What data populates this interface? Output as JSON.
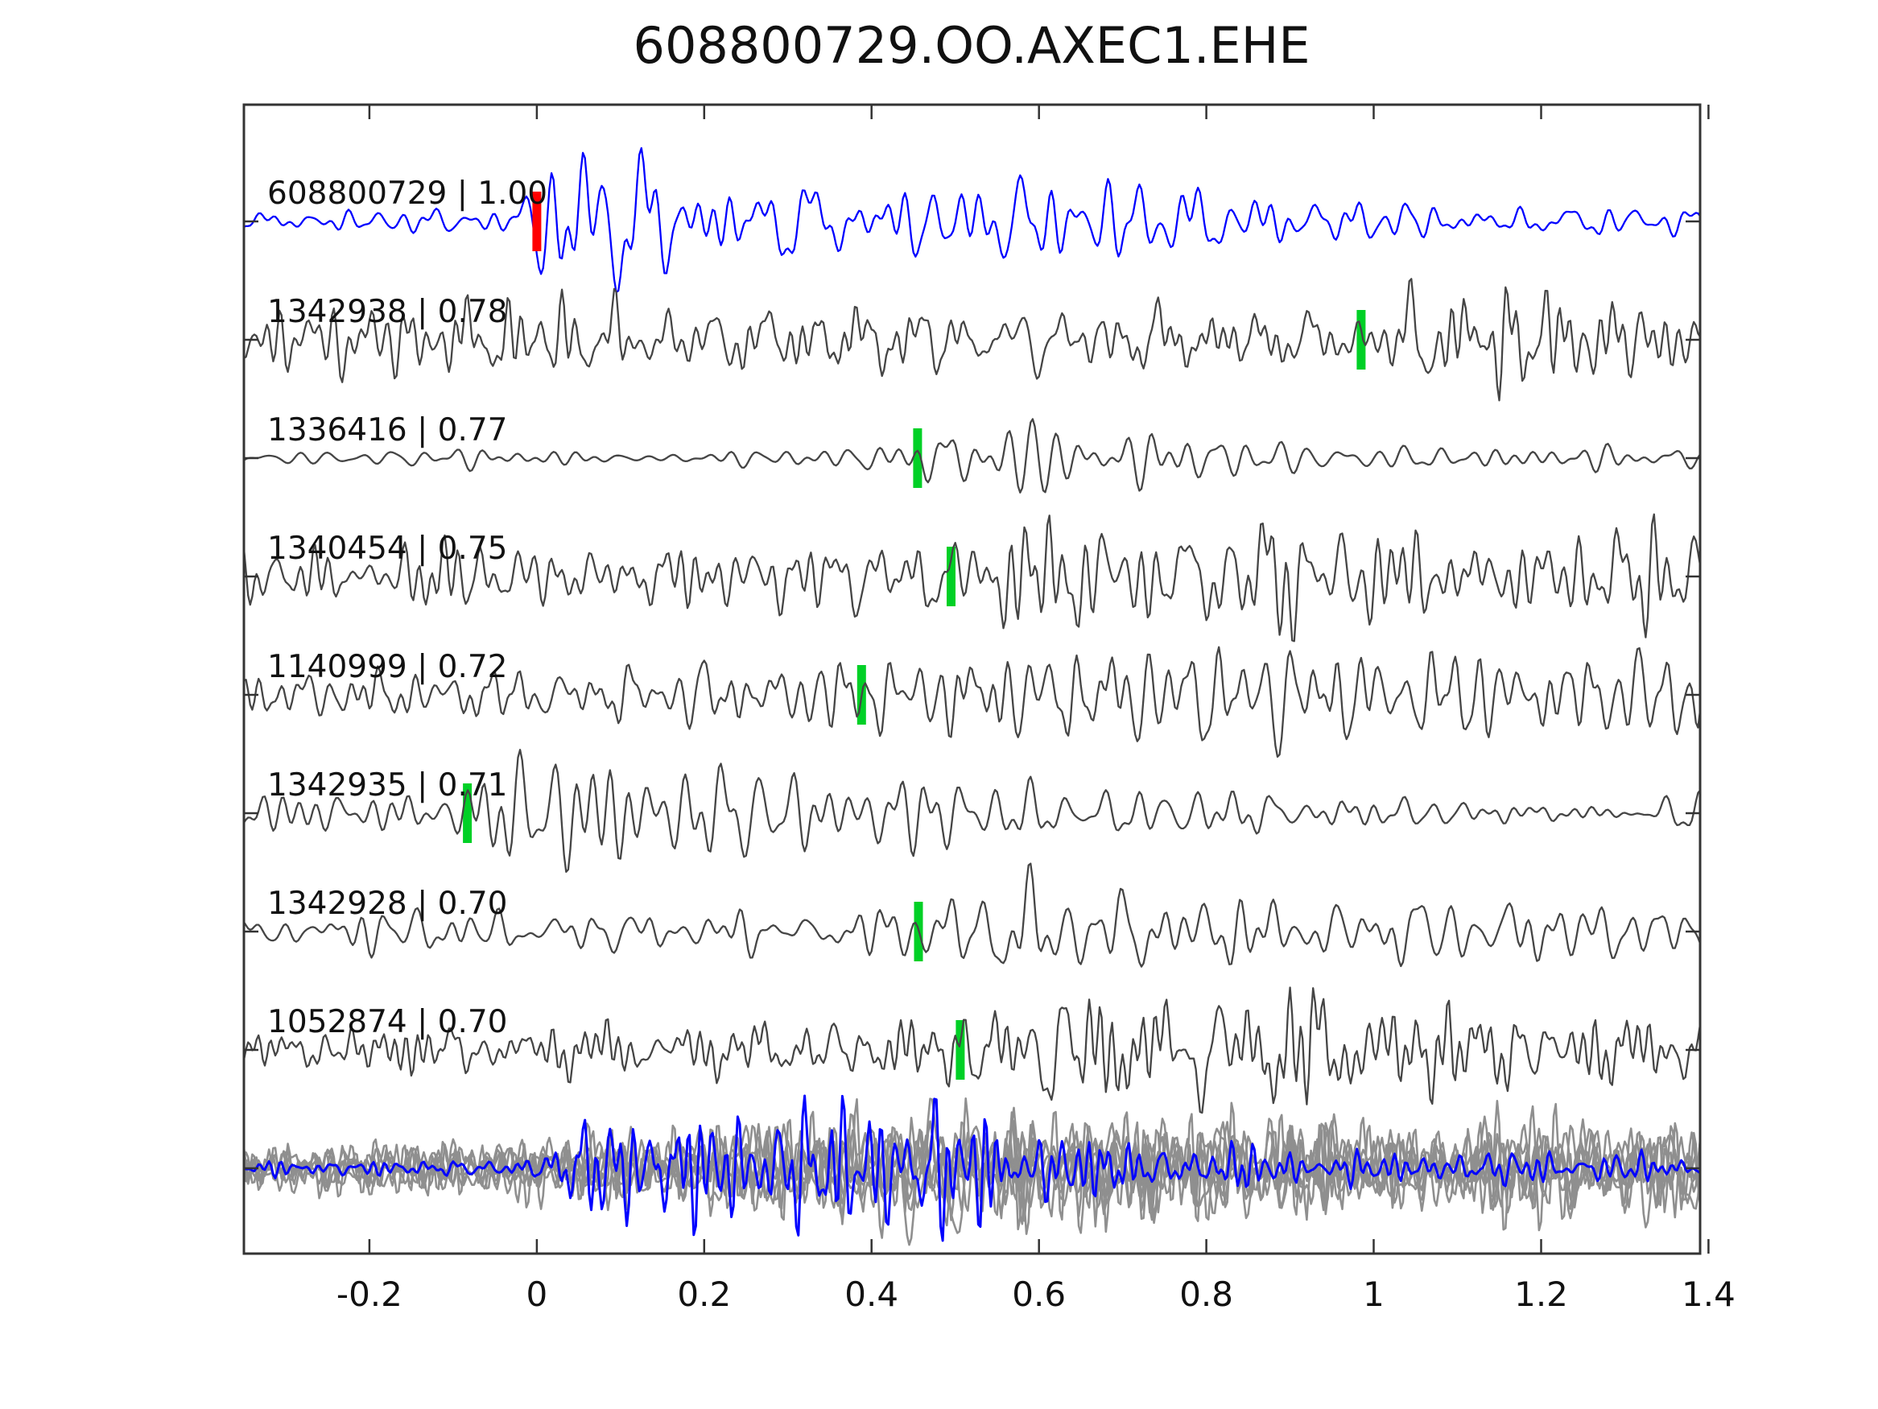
{
  "figure": {
    "title": "608800729.OO.AXEC1.EHE",
    "background": "#ffffff"
  },
  "chart_data": {
    "type": "line",
    "title": "608800729.OO.AXEC1.EHE",
    "subtitle": "",
    "xlabel": "",
    "ylabel": "",
    "legend": false,
    "grid": false,
    "x_range": [
      -0.35,
      1.39
    ],
    "x_ticks": [
      -0.2,
      0,
      0.2,
      0.4,
      0.6,
      0.8,
      1.0,
      1.2,
      1.4
    ],
    "x_tick_labels": [
      "-0.2",
      "0",
      "0.2",
      "0.4",
      "0.6",
      "0.8",
      "1",
      "1.2",
      "1.4"
    ],
    "colors": {
      "template_trace": "#0000ff",
      "detection_trace": "#454545",
      "stack_member_trace": "#8f8f8f",
      "template_pick": "#ff0000",
      "detection_pick": "#00d026",
      "axis": "#333333",
      "text": "#111111"
    },
    "traces": [
      {
        "id": "608800729",
        "correlation": "1.00",
        "label": "608800729 | 1.00",
        "role": "template",
        "color_key": "template_trace",
        "pick": {
          "time": 0.0,
          "color_key": "template_pick",
          "z": "above"
        },
        "render": {
          "seed": 11,
          "freq": 32,
          "envelope": [
            [
              -0.35,
              13
            ],
            [
              -0.03,
              14
            ],
            [
              0.02,
              85
            ],
            [
              0.1,
              92
            ],
            [
              0.22,
              70
            ],
            [
              0.35,
              55
            ],
            [
              0.5,
              48
            ],
            [
              0.62,
              50
            ],
            [
              0.75,
              38
            ],
            [
              0.95,
              30
            ],
            [
              1.1,
              24
            ],
            [
              1.25,
              18
            ],
            [
              1.39,
              14
            ]
          ]
        }
      },
      {
        "id": "1342938",
        "correlation": "0.78",
        "label": "1342938 | 0.78",
        "role": "detection",
        "color_key": "detection_trace",
        "pick": {
          "time": 0.985,
          "color_key": "detection_pick",
          "z": "below"
        },
        "render": {
          "seed": 23,
          "freq": 46,
          "envelope": [
            [
              -0.35,
              42
            ],
            [
              0.2,
              45
            ],
            [
              0.6,
              42
            ],
            [
              0.95,
              42
            ],
            [
              1.03,
              68
            ],
            [
              1.15,
              72
            ],
            [
              1.25,
              52
            ],
            [
              1.39,
              46
            ]
          ]
        }
      },
      {
        "id": "1336416",
        "correlation": "0.77",
        "label": "1336416 | 0.77",
        "role": "detection",
        "color_key": "detection_trace",
        "pick": {
          "time": 0.455,
          "color_key": "detection_pick",
          "z": "below"
        },
        "render": {
          "seed": 37,
          "freq": 26,
          "envelope": [
            [
              -0.35,
              8
            ],
            [
              0.35,
              10
            ],
            [
              0.44,
              22
            ],
            [
              0.5,
              60
            ],
            [
              0.57,
              82
            ],
            [
              0.68,
              40
            ],
            [
              0.8,
              18
            ],
            [
              0.95,
              14
            ],
            [
              1.08,
              20
            ],
            [
              1.25,
              16
            ],
            [
              1.39,
              11
            ]
          ]
        }
      },
      {
        "id": "1340454",
        "correlation": "0.75",
        "label": "1340454 | 0.75",
        "role": "detection",
        "color_key": "detection_trace",
        "pick": {
          "time": 0.495,
          "color_key": "detection_pick",
          "z": "below"
        },
        "render": {
          "seed": 41,
          "freq": 42,
          "envelope": [
            [
              -0.35,
              36
            ],
            [
              0.4,
              40
            ],
            [
              0.52,
              60
            ],
            [
              0.65,
              72
            ],
            [
              0.85,
              62
            ],
            [
              1.05,
              55
            ],
            [
              1.25,
              52
            ],
            [
              1.39,
              50
            ]
          ]
        }
      },
      {
        "id": "1140999",
        "correlation": "0.72",
        "label": "1140999 | 0.72",
        "role": "detection",
        "color_key": "detection_trace",
        "pick": {
          "time": 0.388,
          "color_key": "detection_pick",
          "z": "below"
        },
        "render": {
          "seed": 59,
          "freq": 48,
          "envelope": [
            [
              -0.35,
              36
            ],
            [
              0.3,
              40
            ],
            [
              0.42,
              55
            ],
            [
              0.6,
              62
            ],
            [
              0.85,
              58
            ],
            [
              1.1,
              60
            ],
            [
              1.39,
              55
            ]
          ]
        }
      },
      {
        "id": "1342935",
        "correlation": "0.71",
        "label": "1342935 | 0.71",
        "role": "detection",
        "color_key": "detection_trace",
        "pick": {
          "time": -0.083,
          "color_key": "detection_pick",
          "z": "below"
        },
        "render": {
          "seed": 67,
          "freq": 30,
          "envelope": [
            [
              -0.35,
              28
            ],
            [
              -0.13,
              32
            ],
            [
              -0.06,
              62
            ],
            [
              0.02,
              70
            ],
            [
              0.15,
              55
            ],
            [
              0.35,
              42
            ],
            [
              0.6,
              32
            ],
            [
              0.85,
              30
            ],
            [
              1.1,
              26
            ],
            [
              1.39,
              22
            ]
          ]
        }
      },
      {
        "id": "1342928",
        "correlation": "0.70",
        "label": "1342928 | 0.70",
        "role": "detection",
        "color_key": "detection_trace",
        "pick": {
          "time": 0.456,
          "color_key": "detection_pick",
          "z": "below"
        },
        "render": {
          "seed": 73,
          "freq": 33,
          "envelope": [
            [
              -0.35,
              24
            ],
            [
              0.3,
              26
            ],
            [
              0.46,
              40
            ],
            [
              0.56,
              75
            ],
            [
              0.68,
              55
            ],
            [
              0.85,
              45
            ],
            [
              1.05,
              42
            ],
            [
              1.25,
              35
            ],
            [
              1.39,
              30
            ]
          ]
        }
      },
      {
        "id": "1052874",
        "correlation": "0.70",
        "label": "1052874 | 0.70",
        "role": "detection",
        "color_key": "detection_trace",
        "pick": {
          "time": 0.506,
          "color_key": "detection_pick",
          "z": "below"
        },
        "render": {
          "seed": 89,
          "freq": 44,
          "envelope": [
            [
              -0.35,
              30
            ],
            [
              0.35,
              34
            ],
            [
              0.5,
              50
            ],
            [
              0.62,
              70
            ],
            [
              0.85,
              68
            ],
            [
              1.1,
              58
            ],
            [
              1.3,
              48
            ],
            [
              1.39,
              44
            ]
          ]
        }
      }
    ],
    "stack": {
      "description": "overlay of all aligned detection waveforms with template",
      "members": [
        {
          "render": {
            "seed": 101,
            "freq": 52,
            "scale": 1.0
          }
        },
        {
          "render": {
            "seed": 103,
            "freq": 47,
            "scale": 0.92
          }
        },
        {
          "render": {
            "seed": 107,
            "freq": 55,
            "scale": 1.05
          }
        },
        {
          "render": {
            "seed": 109,
            "freq": 49,
            "scale": 0.85
          }
        },
        {
          "render": {
            "seed": 113,
            "freq": 58,
            "scale": 0.95
          }
        },
        {
          "render": {
            "seed": 127,
            "freq": 44,
            "scale": 1.1
          }
        },
        {
          "render": {
            "seed": 131,
            "freq": 51,
            "scale": 0.88
          }
        }
      ],
      "member_envelope": [
        [
          -0.35,
          28
        ],
        [
          0.0,
          34
        ],
        [
          0.25,
          55
        ],
        [
          0.45,
          68
        ],
        [
          0.7,
          66
        ],
        [
          0.95,
          60
        ],
        [
          1.2,
          58
        ],
        [
          1.39,
          55
        ]
      ],
      "template_member": {
        "render": {
          "seed": 139,
          "freq": 50,
          "envelope": [
            [
              -0.35,
              10
            ],
            [
              0.0,
              10
            ],
            [
              0.06,
              60
            ],
            [
              0.3,
              72
            ],
            [
              0.55,
              68
            ],
            [
              0.75,
              40
            ],
            [
              0.95,
              22
            ],
            [
              1.15,
              18
            ],
            [
              1.39,
              15
            ]
          ]
        }
      }
    },
    "layout": {
      "plot_left": 303,
      "plot_right": 2112,
      "plot_top": 130,
      "plot_bottom": 1557,
      "row_baselines": [
        275,
        422,
        569,
        716,
        863,
        1010,
        1157,
        1304
      ],
      "stack_baseline": 1451,
      "pick_marker_width": 11,
      "pick_marker_height": 74,
      "label_x": 332,
      "label_dy": -22,
      "title_x": 1207,
      "title_y": 78,
      "tick_len": 18,
      "tick_label_y": 1622,
      "font_title": 62,
      "font_label": 39,
      "font_tick": 42
    }
  }
}
